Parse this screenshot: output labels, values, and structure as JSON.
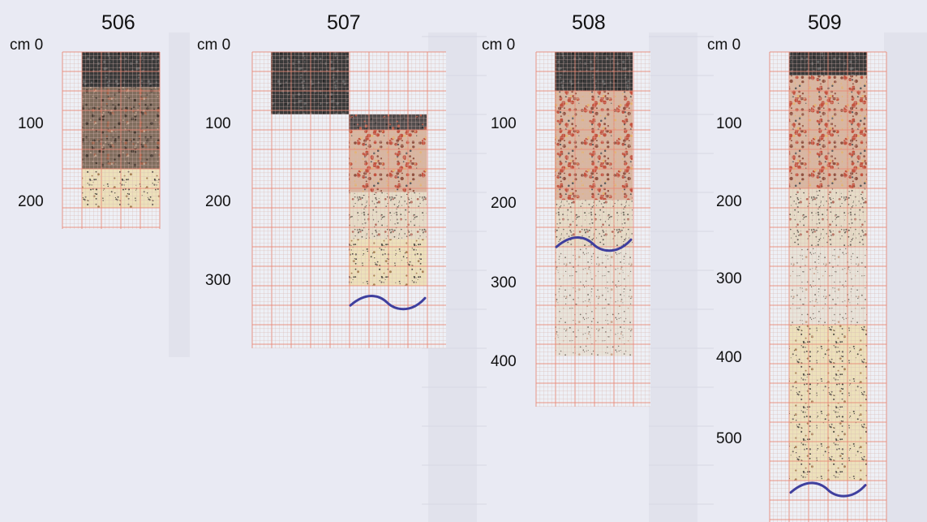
{
  "unit_label": "cm",
  "colors": {
    "paper": "#e9eaf3",
    "grid_major": "#e88a78",
    "grid_minor": "#d8b9b2",
    "humus": "#2f2f2f",
    "gravel": "#b98a72",
    "sand": "#ede0b8",
    "groundwater_line": "#3f3f9e"
  },
  "profiles": [
    {
      "id": "506",
      "depth_ticks": [
        "0",
        "100",
        "200"
      ],
      "columns": [
        {
          "layers": [
            {
              "from": 0,
              "to": 45,
              "kind": "humus"
            },
            {
              "from": 45,
              "to": 150,
              "kind": "dark-gravel"
            },
            {
              "from": 150,
              "to": 200,
              "kind": "sand"
            }
          ]
        }
      ],
      "water_depth": null
    },
    {
      "id": "507",
      "depth_ticks": [
        "0",
        "100",
        "200",
        "300"
      ],
      "columns": [
        {
          "layers": [
            {
              "from": 0,
              "to": 80,
              "kind": "humus"
            }
          ]
        },
        {
          "layers": [
            {
              "from": 80,
              "to": 100,
              "kind": "humus-gravel"
            },
            {
              "from": 100,
              "to": 180,
              "kind": "gravel"
            },
            {
              "from": 180,
              "to": 240,
              "kind": "fine-sand"
            },
            {
              "from": 240,
              "to": 300,
              "kind": "sand"
            }
          ]
        }
      ],
      "water_depth": 320
    },
    {
      "id": "508",
      "depth_ticks": [
        "0",
        "100",
        "200",
        "300",
        "400"
      ],
      "columns": [
        {
          "layers": [
            {
              "from": 0,
              "to": 50,
              "kind": "humus"
            },
            {
              "from": 50,
              "to": 190,
              "kind": "gravel"
            },
            {
              "from": 190,
              "to": 250,
              "kind": "fine-sand"
            },
            {
              "from": 250,
              "to": 390,
              "kind": "light-sand"
            }
          ]
        }
      ],
      "water_depth": 245
    },
    {
      "id": "509",
      "depth_ticks": [
        "0",
        "100",
        "200",
        "300",
        "400",
        "500"
      ],
      "columns": [
        {
          "layers": [
            {
              "from": 0,
              "to": 30,
              "kind": "humus"
            },
            {
              "from": 30,
              "to": 175,
              "kind": "gravel"
            },
            {
              "from": 175,
              "to": 250,
              "kind": "fine-sand"
            },
            {
              "from": 250,
              "to": 350,
              "kind": "light-sand"
            },
            {
              "from": 350,
              "to": 550,
              "kind": "sand"
            }
          ]
        }
      ],
      "water_depth": 560
    }
  ]
}
